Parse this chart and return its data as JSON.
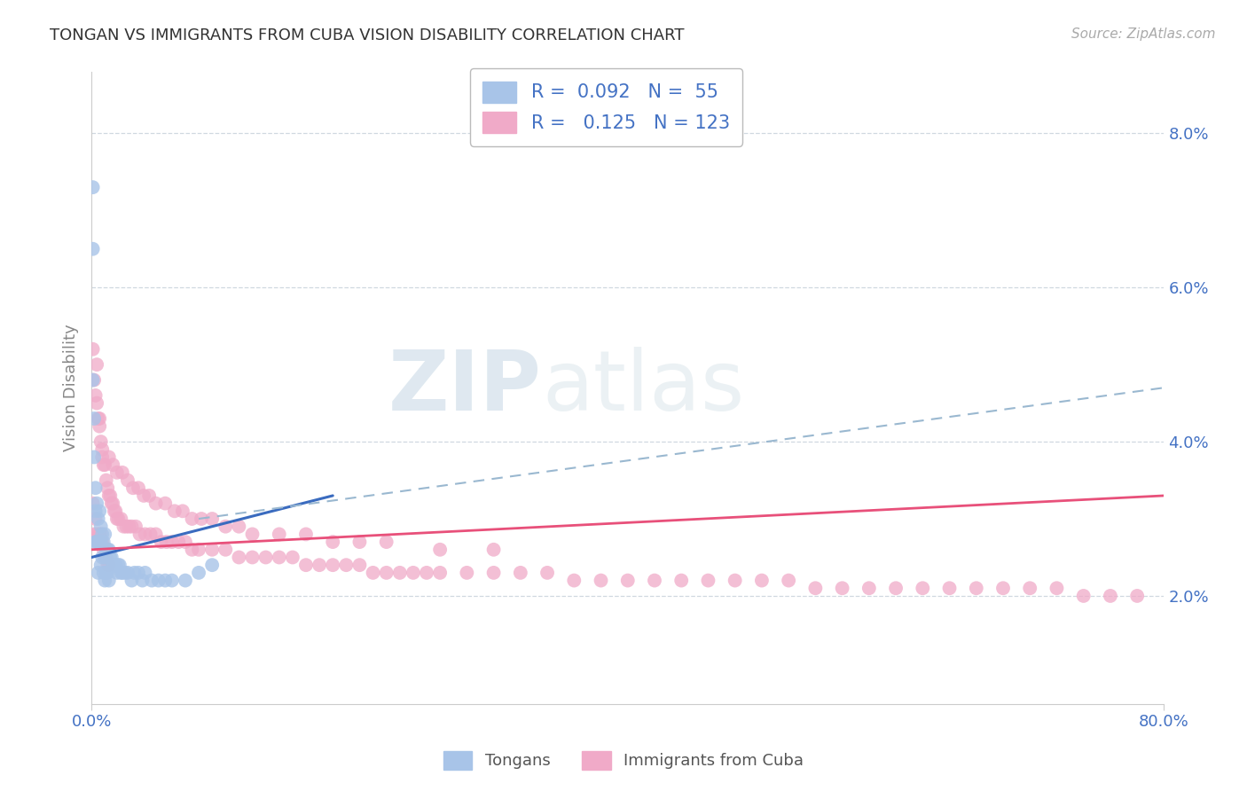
{
  "title": "TONGAN VS IMMIGRANTS FROM CUBA VISION DISABILITY CORRELATION CHART",
  "source": "Source: ZipAtlas.com",
  "ylabel": "Vision Disability",
  "right_yticks": [
    "2.0%",
    "4.0%",
    "6.0%",
    "8.0%"
  ],
  "right_ytick_vals": [
    0.02,
    0.04,
    0.06,
    0.08
  ],
  "xlim": [
    0.0,
    0.8
  ],
  "ylim": [
    0.006,
    0.088
  ],
  "tongan_color": "#a8c4e8",
  "cuba_color": "#f0aac8",
  "tongan_line_color": "#3a6bbf",
  "cuba_line_color": "#e8507a",
  "dash_line_color": "#9ab8d0",
  "background_color": "#ffffff",
  "watermark_text": "ZIPatlas",
  "tick_color": "#4472c4",
  "spine_color": "#cccccc",
  "grid_color": "#d0d8e0",
  "tongan_x": [
    0.001,
    0.001,
    0.001,
    0.002,
    0.002,
    0.003,
    0.003,
    0.003,
    0.004,
    0.004,
    0.005,
    0.005,
    0.005,
    0.006,
    0.006,
    0.007,
    0.007,
    0.007,
    0.008,
    0.008,
    0.009,
    0.009,
    0.01,
    0.01,
    0.01,
    0.011,
    0.011,
    0.012,
    0.012,
    0.013,
    0.013,
    0.014,
    0.015,
    0.016,
    0.017,
    0.018,
    0.019,
    0.02,
    0.021,
    0.022,
    0.023,
    0.025,
    0.027,
    0.03,
    0.032,
    0.035,
    0.038,
    0.04,
    0.045,
    0.05,
    0.055,
    0.06,
    0.07,
    0.08,
    0.09
  ],
  "tongan_y": [
    0.073,
    0.065,
    0.048,
    0.043,
    0.038,
    0.034,
    0.031,
    0.027,
    0.032,
    0.027,
    0.03,
    0.027,
    0.023,
    0.031,
    0.027,
    0.029,
    0.027,
    0.024,
    0.028,
    0.025,
    0.027,
    0.023,
    0.028,
    0.025,
    0.022,
    0.026,
    0.023,
    0.026,
    0.023,
    0.026,
    0.022,
    0.025,
    0.025,
    0.024,
    0.024,
    0.024,
    0.023,
    0.024,
    0.024,
    0.023,
    0.023,
    0.023,
    0.023,
    0.022,
    0.023,
    0.023,
    0.022,
    0.023,
    0.022,
    0.022,
    0.022,
    0.022,
    0.022,
    0.023,
    0.024
  ],
  "cuba_x": [
    0.001,
    0.001,
    0.002,
    0.002,
    0.003,
    0.003,
    0.004,
    0.004,
    0.005,
    0.005,
    0.006,
    0.006,
    0.007,
    0.007,
    0.008,
    0.008,
    0.009,
    0.009,
    0.01,
    0.01,
    0.011,
    0.011,
    0.012,
    0.012,
    0.013,
    0.013,
    0.014,
    0.015,
    0.016,
    0.017,
    0.018,
    0.019,
    0.02,
    0.022,
    0.024,
    0.026,
    0.028,
    0.03,
    0.033,
    0.036,
    0.04,
    0.044,
    0.048,
    0.052,
    0.056,
    0.06,
    0.065,
    0.07,
    0.075,
    0.08,
    0.09,
    0.1,
    0.11,
    0.12,
    0.13,
    0.14,
    0.15,
    0.16,
    0.17,
    0.18,
    0.19,
    0.2,
    0.21,
    0.22,
    0.23,
    0.24,
    0.25,
    0.26,
    0.28,
    0.3,
    0.32,
    0.34,
    0.36,
    0.38,
    0.4,
    0.42,
    0.44,
    0.46,
    0.48,
    0.5,
    0.52,
    0.54,
    0.56,
    0.58,
    0.6,
    0.62,
    0.64,
    0.66,
    0.68,
    0.7,
    0.72,
    0.74,
    0.76,
    0.78,
    0.004,
    0.006,
    0.008,
    0.013,
    0.016,
    0.019,
    0.023,
    0.027,
    0.031,
    0.035,
    0.039,
    0.043,
    0.048,
    0.055,
    0.062,
    0.068,
    0.075,
    0.082,
    0.09,
    0.1,
    0.11,
    0.12,
    0.14,
    0.16,
    0.18,
    0.2,
    0.22,
    0.26,
    0.3
  ],
  "cuba_y": [
    0.052,
    0.032,
    0.048,
    0.028,
    0.046,
    0.03,
    0.045,
    0.028,
    0.043,
    0.027,
    0.042,
    0.028,
    0.04,
    0.028,
    0.038,
    0.027,
    0.037,
    0.026,
    0.037,
    0.025,
    0.035,
    0.025,
    0.034,
    0.024,
    0.033,
    0.024,
    0.033,
    0.032,
    0.032,
    0.031,
    0.031,
    0.03,
    0.03,
    0.03,
    0.029,
    0.029,
    0.029,
    0.029,
    0.029,
    0.028,
    0.028,
    0.028,
    0.028,
    0.027,
    0.027,
    0.027,
    0.027,
    0.027,
    0.026,
    0.026,
    0.026,
    0.026,
    0.025,
    0.025,
    0.025,
    0.025,
    0.025,
    0.024,
    0.024,
    0.024,
    0.024,
    0.024,
    0.023,
    0.023,
    0.023,
    0.023,
    0.023,
    0.023,
    0.023,
    0.023,
    0.023,
    0.023,
    0.022,
    0.022,
    0.022,
    0.022,
    0.022,
    0.022,
    0.022,
    0.022,
    0.022,
    0.021,
    0.021,
    0.021,
    0.021,
    0.021,
    0.021,
    0.021,
    0.021,
    0.021,
    0.021,
    0.02,
    0.02,
    0.02,
    0.05,
    0.043,
    0.039,
    0.038,
    0.037,
    0.036,
    0.036,
    0.035,
    0.034,
    0.034,
    0.033,
    0.033,
    0.032,
    0.032,
    0.031,
    0.031,
    0.03,
    0.03,
    0.03,
    0.029,
    0.029,
    0.028,
    0.028,
    0.028,
    0.027,
    0.027,
    0.027,
    0.026,
    0.026
  ],
  "tongan_line_x": [
    0.0,
    0.18
  ],
  "tongan_line_y": [
    0.025,
    0.033
  ],
  "cuba_line_x": [
    0.0,
    0.8
  ],
  "cuba_line_y": [
    0.026,
    0.033
  ],
  "dash_line_x": [
    0.08,
    0.8
  ],
  "dash_line_y": [
    0.03,
    0.047
  ]
}
